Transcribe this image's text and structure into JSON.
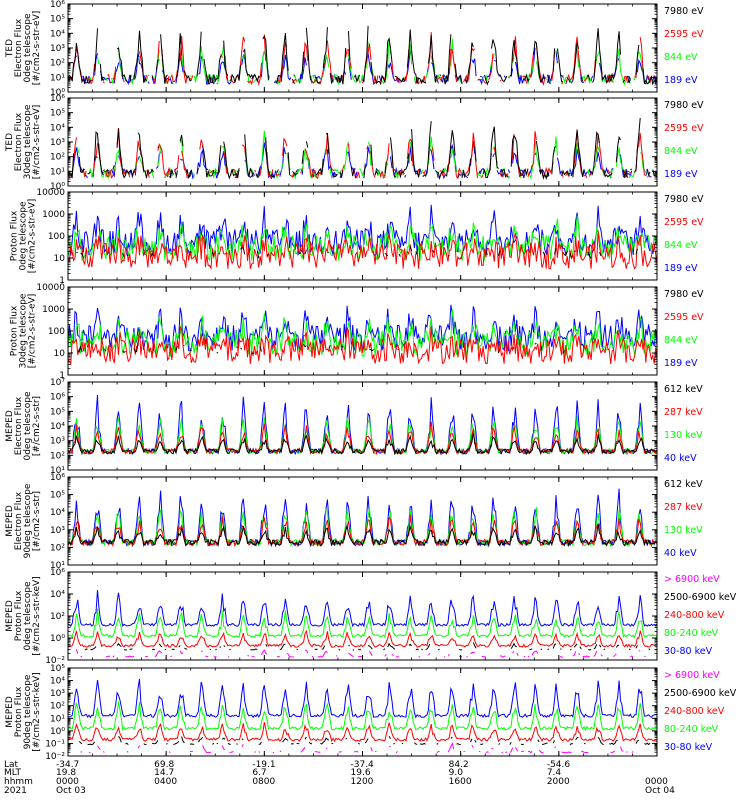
{
  "figure": {
    "time_rows": [
      {
        "label": "Lat",
        "values": [
          "-34.7",
          "69.8",
          "-19.1",
          "-37.4",
          "84.2",
          "-54.6",
          ""
        ]
      },
      {
        "label": "MLT",
        "values": [
          "19.8",
          "14.7",
          "6.7",
          "19.6",
          "9.0",
          "7.4",
          ""
        ]
      },
      {
        "label": "hhmm",
        "values": [
          "0000",
          "0400",
          "0800",
          "1200",
          "1600",
          "2000",
          "0000"
        ]
      },
      {
        "label": "2021",
        "values": [
          "Oct 03",
          "",
          "",
          "",
          "",
          "",
          "Oct 04"
        ]
      }
    ]
  },
  "chart_data": [
    {
      "type": "line",
      "ylabel": [
        "TED",
        "Electron Flux",
        "0deg telescope",
        "[#/cm2-s-str-eV]"
      ],
      "log_y": true,
      "ylim_exp": [
        0,
        6
      ],
      "y_ticks": [
        "10⁰",
        "10¹",
        "10²",
        "10³",
        "10⁴",
        "10⁵",
        "10⁶"
      ],
      "x_ticks_hours": [
        0,
        4,
        8,
        12,
        16,
        20,
        24
      ],
      "series": [
        {
          "name": "7980 eV",
          "color": "#000000"
        },
        {
          "name": "2595 eV",
          "color": "#ff0000"
        },
        {
          "name": "844 eV",
          "color": "#00ff00"
        },
        {
          "name": "189 eV",
          "color": "#0000ff"
        }
      ]
    },
    {
      "type": "line",
      "ylabel": [
        "TED",
        "Electron Flux",
        "30deg telescope",
        "[#/cm2-s-str-eV]"
      ],
      "log_y": true,
      "ylim_exp": [
        0,
        6
      ],
      "y_ticks": [
        "10⁰",
        "10¹",
        "10²",
        "10³",
        "10⁴",
        "10⁵",
        "10⁶"
      ],
      "x_ticks_hours": [
        0,
        4,
        8,
        12,
        16,
        20,
        24
      ],
      "series": [
        {
          "name": "7980 eV",
          "color": "#000000"
        },
        {
          "name": "2595 eV",
          "color": "#ff0000"
        },
        {
          "name": "844 eV",
          "color": "#00ff00"
        },
        {
          "name": "189 eV",
          "color": "#0000ff"
        }
      ]
    },
    {
      "type": "line",
      "ylabel": [
        "Proton Flux",
        "0deg telescope",
        "[#/cm2-s-str-eV]"
      ],
      "log_y": true,
      "ylim_exp": [
        0,
        4
      ],
      "y_ticks": [
        "1",
        "10",
        "100",
        "1000",
        "10000"
      ],
      "x_ticks_hours": [
        0,
        4,
        8,
        12,
        16,
        20,
        24
      ],
      "series": [
        {
          "name": "7980 eV",
          "color": "#000000"
        },
        {
          "name": "2595 eV",
          "color": "#ff0000"
        },
        {
          "name": "844 eV",
          "color": "#00ff00"
        },
        {
          "name": "189 eV",
          "color": "#0000ff"
        }
      ]
    },
    {
      "type": "line",
      "ylabel": [
        "Proton Flux",
        "30deg telescope",
        "[#/cm2-s-str-eV]"
      ],
      "log_y": true,
      "ylim_exp": [
        0,
        4
      ],
      "y_ticks": [
        "1",
        "10",
        "100",
        "1000",
        "10000"
      ],
      "x_ticks_hours": [
        0,
        4,
        8,
        12,
        16,
        20,
        24
      ],
      "series": [
        {
          "name": "7980 eV",
          "color": "#000000"
        },
        {
          "name": "2595 eV",
          "color": "#ff0000"
        },
        {
          "name": "844 eV",
          "color": "#00ff00"
        },
        {
          "name": "189 eV",
          "color": "#0000ff"
        }
      ]
    },
    {
      "type": "line",
      "ylabel": [
        "MEPED",
        "Electron Flux",
        "0deg telescope",
        "[#/cm2-s-str]"
      ],
      "log_y": true,
      "ylim_exp": [
        1,
        7
      ],
      "y_ticks": [
        "10¹",
        "10²",
        "10³",
        "10⁴",
        "10⁵",
        "10⁶",
        "10⁷"
      ],
      "x_ticks_hours": [
        0,
        4,
        8,
        12,
        16,
        20,
        24
      ],
      "series": [
        {
          "name": "612 keV",
          "color": "#000000"
        },
        {
          "name": "287 keV",
          "color": "#ff0000"
        },
        {
          "name": "130 keV",
          "color": "#00ff00"
        },
        {
          "name": "40 keV",
          "color": "#0000ff"
        }
      ]
    },
    {
      "type": "line",
      "ylabel": [
        "MEPED",
        "Electron Flux",
        "90deg telescope",
        "[#/cm2-s-str]"
      ],
      "log_y": true,
      "ylim_exp": [
        1,
        6
      ],
      "y_ticks": [
        "10¹",
        "10²",
        "10³",
        "10⁴",
        "10⁵",
        "10⁶"
      ],
      "x_ticks_hours": [
        0,
        4,
        8,
        12,
        16,
        20,
        24
      ],
      "series": [
        {
          "name": "612 keV",
          "color": "#000000"
        },
        {
          "name": "287 keV",
          "color": "#ff0000"
        },
        {
          "name": "130 keV",
          "color": "#00ff00"
        },
        {
          "name": "40 keV",
          "color": "#0000ff"
        }
      ]
    },
    {
      "type": "line",
      "ylabel": [
        "MEPED",
        "Proton Flux",
        "0deg telescope",
        "[#/cm2-s-str-keV]"
      ],
      "log_y": true,
      "ylim_exp": [
        -2,
        6
      ],
      "y_ticks": [
        "10⁻²",
        "10⁰",
        "10²",
        "10⁴",
        "10⁶"
      ],
      "x_ticks_hours": [
        0,
        4,
        8,
        12,
        16,
        20,
        24
      ],
      "series": [
        {
          "name": "> 6900 keV",
          "color": "#ff00ff"
        },
        {
          "name": "2500-6900 keV",
          "color": "#000000"
        },
        {
          "name": "240-800 keV",
          "color": "#ff0000"
        },
        {
          "name": "80-240 keV",
          "color": "#00ff00"
        },
        {
          "name": "30-80 keV",
          "color": "#0000ff"
        }
      ]
    },
    {
      "type": "line",
      "ylabel": [
        "MEPED",
        "Proton Flux",
        "90deg telescope",
        "[#/cm2-s-str-keV]"
      ],
      "log_y": true,
      "ylim_exp": [
        -2,
        5
      ],
      "y_ticks": [
        "10⁻²",
        "10⁻¹",
        "10⁰",
        "10¹",
        "10²",
        "10³",
        "10⁴",
        "10⁵"
      ],
      "x_ticks_hours": [
        0,
        4,
        8,
        12,
        16,
        20,
        24
      ],
      "series": [
        {
          "name": "> 6900 keV",
          "color": "#ff00ff"
        },
        {
          "name": "2500-6900 keV",
          "color": "#000000"
        },
        {
          "name": "240-800 keV",
          "color": "#ff0000"
        },
        {
          "name": "80-240 keV",
          "color": "#00ff00"
        },
        {
          "name": "30-80 keV",
          "color": "#0000ff"
        }
      ]
    }
  ]
}
